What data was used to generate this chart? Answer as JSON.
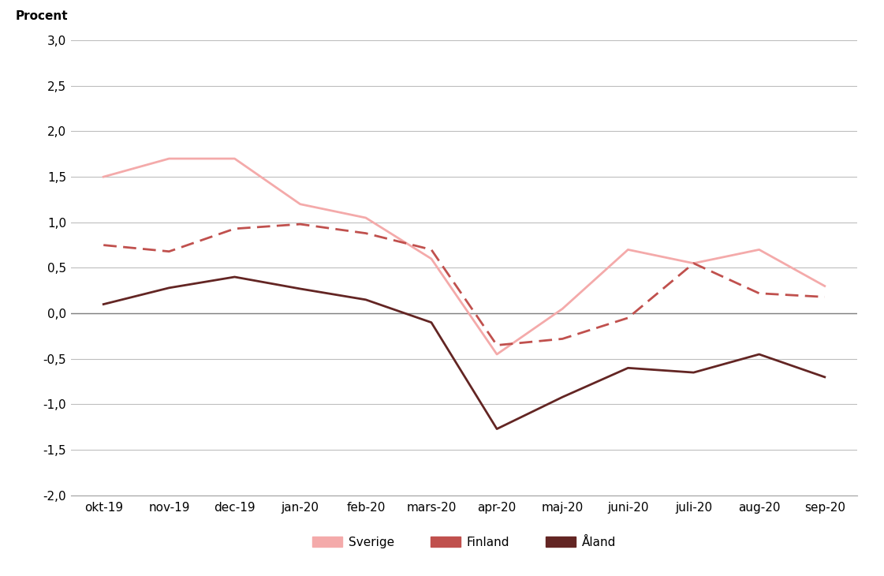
{
  "categories": [
    "okt-19",
    "nov-19",
    "dec-19",
    "jan-20",
    "feb-20",
    "mars-20",
    "apr-20",
    "maj-20",
    "juni-20",
    "juli-20",
    "aug-20",
    "sep-20"
  ],
  "sverige": [
    1.5,
    1.7,
    1.7,
    1.2,
    1.05,
    0.6,
    -0.45,
    0.05,
    0.7,
    0.55,
    0.7,
    0.3
  ],
  "finland": [
    0.75,
    0.68,
    0.93,
    0.98,
    0.88,
    0.7,
    -0.35,
    -0.28,
    -0.05,
    0.55,
    0.22,
    0.18
  ],
  "aland": [
    0.1,
    0.28,
    0.4,
    0.27,
    0.15,
    -0.1,
    -1.27,
    -0.92,
    -0.6,
    -0.65,
    -0.45,
    -0.7
  ],
  "sverige_color": "#F4AAAA",
  "finland_color": "#C0504D",
  "aland_color": "#632523",
  "procent_label": "Procent",
  "ylim": [
    -2.0,
    3.0
  ],
  "yticks": [
    -2.0,
    -1.5,
    -1.0,
    -0.5,
    0.0,
    0.5,
    1.0,
    1.5,
    2.0,
    2.5,
    3.0
  ],
  "background_color": "#FFFFFF",
  "grid_color": "#BEBEBE",
  "legend_labels": [
    "Sverige",
    "Finland",
    "Åland"
  ],
  "zero_line_color": "#808080"
}
